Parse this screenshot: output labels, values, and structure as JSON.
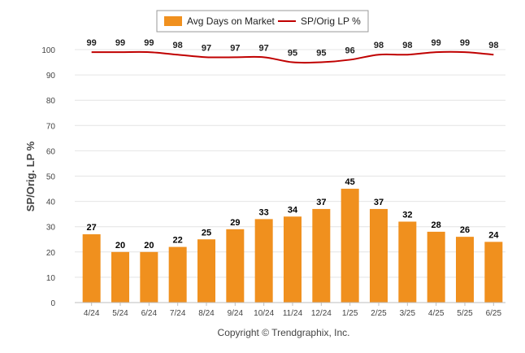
{
  "chart_data": {
    "type": "bar",
    "categories": [
      "4/24",
      "5/24",
      "6/24",
      "7/24",
      "8/24",
      "9/24",
      "10/24",
      "11/24",
      "12/24",
      "1/25",
      "2/25",
      "3/25",
      "4/25",
      "5/25",
      "6/25"
    ],
    "series": [
      {
        "name": "Avg Days on Market",
        "type": "bar",
        "color": "#F0901E",
        "values": [
          27,
          20,
          20,
          22,
          25,
          29,
          33,
          34,
          37,
          45,
          37,
          32,
          28,
          26,
          24
        ]
      },
      {
        "name": "SP/Orig LP %",
        "type": "line",
        "color": "#C00000",
        "values": [
          99,
          99,
          99,
          98,
          97,
          97,
          97,
          95,
          95,
          96,
          98,
          98,
          99,
          99,
          98
        ]
      }
    ],
    "ylabel": "SP/Orig. LP %",
    "ylim": [
      0,
      100
    ],
    "yticks": [
      "0",
      "10",
      "20",
      "30",
      "40",
      "50",
      "60",
      "70",
      "80",
      "90",
      "100"
    ],
    "grid": true,
    "legend_position": "top-center"
  },
  "credit": "Copyright © Trendgraphix, Inc."
}
